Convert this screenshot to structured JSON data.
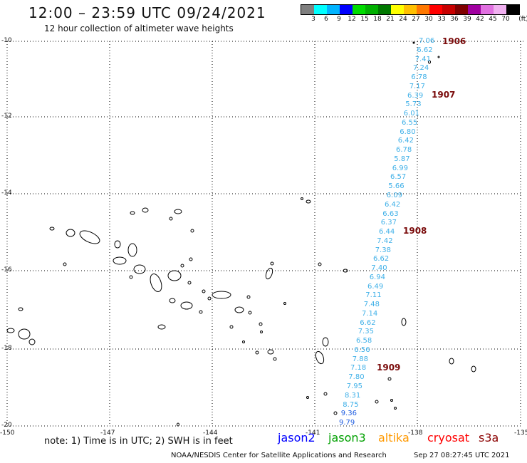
{
  "header": {
    "title": "12:00 – 23:59 UTC 09/24/2021",
    "subtitle": "12 hour collection of altimeter wave heights"
  },
  "legend": {
    "unit": "(ft)",
    "values": [
      "3",
      "6",
      "9",
      "12",
      "15",
      "18",
      "21",
      "24",
      "27",
      "30",
      "33",
      "36",
      "39",
      "42",
      "45",
      "70"
    ],
    "colors": [
      "#7f7f7f",
      "#00ffff",
      "#00b4ff",
      "#0000ff",
      "#00dd00",
      "#00b000",
      "#007800",
      "#ffff00",
      "#ffc000",
      "#ff7800",
      "#ff0000",
      "#c80000",
      "#7f0000",
      "#a000a0",
      "#e070e0",
      "#f0b0f0",
      "#000000"
    ]
  },
  "axes": {
    "lat_labels": [
      "-10",
      "-12",
      "-14",
      "-16",
      "-18",
      "-20"
    ],
    "lon_labels": [
      "-150",
      "-147",
      "-144",
      "-141",
      "-138",
      "-135"
    ]
  },
  "passes": [
    "1906",
    "1907",
    "1908",
    "1909"
  ],
  "wave_heights": [
    {
      "v": "7.06",
      "c": "#3fb0e8"
    },
    {
      "v": "6.62",
      "c": "#3fb0e8"
    },
    {
      "v": "7.41",
      "c": "#3fb0e8"
    },
    {
      "v": "7.24",
      "c": "#3fb0e8"
    },
    {
      "v": "6.78",
      "c": "#3fb0e8"
    },
    {
      "v": "7.17",
      "c": "#3fb0e8"
    },
    {
      "v": "6.39",
      "c": "#3fb0e8"
    },
    {
      "v": "5.73",
      "c": "#3fb0e8"
    },
    {
      "v": "6.01",
      "c": "#3fb0e8"
    },
    {
      "v": "6.55",
      "c": "#3fb0e8"
    },
    {
      "v": "6.80",
      "c": "#3fb0e8"
    },
    {
      "v": "6.42",
      "c": "#3fb0e8"
    },
    {
      "v": "6.78",
      "c": "#3fb0e8"
    },
    {
      "v": "5.87",
      "c": "#3fb0e8"
    },
    {
      "v": "6.99",
      "c": "#3fb0e8"
    },
    {
      "v": "6.57",
      "c": "#3fb0e8"
    },
    {
      "v": "5.66",
      "c": "#3fb0e8"
    },
    {
      "v": "6.09",
      "c": "#3fb0e8"
    },
    {
      "v": "6.42",
      "c": "#3fb0e8"
    },
    {
      "v": "6.63",
      "c": "#3fb0e8"
    },
    {
      "v": "6.37",
      "c": "#3fb0e8"
    },
    {
      "v": "6.44",
      "c": "#3fb0e8"
    },
    {
      "v": "7.42",
      "c": "#3fb0e8"
    },
    {
      "v": "7.38",
      "c": "#3fb0e8"
    },
    {
      "v": "6.62",
      "c": "#3fb0e8"
    },
    {
      "v": "7.40",
      "c": "#3fb0e8"
    },
    {
      "v": "6.94",
      "c": "#3fb0e8"
    },
    {
      "v": "6.49",
      "c": "#3fb0e8"
    },
    {
      "v": "7.11",
      "c": "#3fb0e8"
    },
    {
      "v": "7.48",
      "c": "#3fb0e8"
    },
    {
      "v": "7.14",
      "c": "#3fb0e8"
    },
    {
      "v": "6.62",
      "c": "#3fb0e8"
    },
    {
      "v": "7.35",
      "c": "#3fb0e8"
    },
    {
      "v": "6.58",
      "c": "#3fb0e8"
    },
    {
      "v": "6.56",
      "c": "#3fb0e8"
    },
    {
      "v": "7.88",
      "c": "#3fb0e8"
    },
    {
      "v": "7.18",
      "c": "#3fb0e8"
    },
    {
      "v": "7.80",
      "c": "#3fb0e8"
    },
    {
      "v": "7.95",
      "c": "#3fb0e8"
    },
    {
      "v": "8.31",
      "c": "#3fb0e8"
    },
    {
      "v": "8.75",
      "c": "#3fb0e8"
    },
    {
      "v": "9.36",
      "c": "#1a5ae0"
    },
    {
      "v": "9.79",
      "c": "#1a5ae0"
    }
  ],
  "footer": {
    "note": "note: 1) Time is in UTC; 2) SWH is in feet",
    "satellites": [
      {
        "name": "jason2",
        "color": "#0000ff"
      },
      {
        "name": "jason3",
        "color": "#00a000"
      },
      {
        "name": "altika",
        "color": "#ff9900"
      },
      {
        "name": "cryosat",
        "color": "#ff0000"
      },
      {
        "name": "s3a",
        "color": "#8b0000"
      }
    ],
    "credit_left": "NOAA/NESDIS Center for Satellite Applications and Research",
    "credit_right": "Sep 27 08:27:45 UTC 2021"
  }
}
